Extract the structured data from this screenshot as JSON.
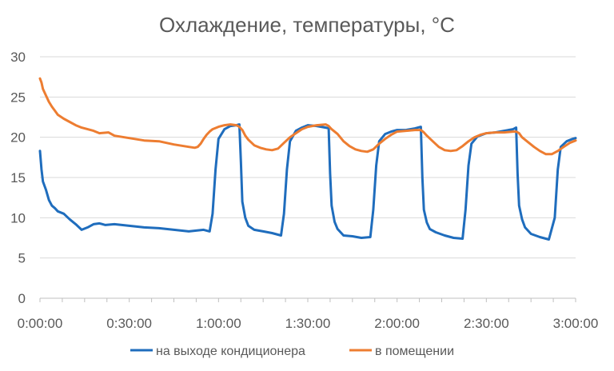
{
  "chart_data": {
    "type": "line",
    "title": "Охлаждение, температуры, °C",
    "xlabel": "",
    "ylabel": "",
    "x_unit": "minutes",
    "xlim": [
      0,
      180
    ],
    "ylim": [
      0,
      30
    ],
    "x_ticks": [
      0,
      30,
      60,
      90,
      120,
      150,
      180
    ],
    "x_tick_labels": [
      "0:00:00",
      "0:30:00",
      "1:00:00",
      "1:30:00",
      "2:00:00",
      "2:30:00",
      "3:00:00"
    ],
    "y_ticks": [
      0,
      5,
      10,
      15,
      20,
      25,
      30
    ],
    "y_tick_labels": [
      "0",
      "5",
      "10",
      "15",
      "20",
      "25",
      "30"
    ],
    "grid": true,
    "legend_position": "bottom",
    "series": [
      {
        "name": "на выходе кондиционера",
        "color": "#1f6dbd",
        "x": [
          0,
          0.5,
          1,
          2,
          3,
          4,
          5,
          6,
          8,
          10,
          12,
          14,
          16,
          18,
          20,
          22,
          25,
          30,
          35,
          40,
          45,
          50,
          55,
          57,
          58,
          59,
          60,
          62,
          64,
          66,
          67,
          67.5,
          68,
          69,
          70,
          72,
          75,
          78,
          81,
          82,
          83,
          84,
          86,
          88,
          90,
          93,
          96,
          97,
          97.5,
          98,
          99,
          100,
          102,
          105,
          108,
          111,
          112,
          113,
          114,
          116,
          118,
          120,
          123,
          126,
          128,
          128.5,
          129,
          130,
          131,
          133,
          136,
          139,
          142,
          143,
          144,
          145,
          147,
          150,
          153,
          156,
          159,
          160,
          160.5,
          161,
          162,
          163,
          165,
          168,
          171,
          173,
          174,
          175,
          177,
          179,
          180
        ],
        "y": [
          18.3,
          16,
          14.5,
          13.5,
          12.2,
          11.5,
          11.2,
          10.8,
          10.5,
          9.8,
          9.2,
          8.5,
          8.8,
          9.2,
          9.3,
          9.1,
          9.2,
          9.0,
          8.8,
          8.7,
          8.5,
          8.3,
          8.5,
          8.3,
          10.5,
          16.0,
          19.8,
          21.0,
          21.4,
          21.5,
          21.6,
          17.0,
          12.0,
          10.0,
          9.0,
          8.5,
          8.3,
          8.1,
          7.8,
          10.5,
          16.0,
          19.5,
          20.8,
          21.2,
          21.5,
          21.4,
          21.2,
          21.1,
          15.5,
          11.5,
          9.5,
          8.6,
          7.8,
          7.7,
          7.5,
          7.6,
          11.0,
          16.5,
          19.5,
          20.4,
          20.7,
          20.9,
          20.9,
          21.1,
          21.3,
          15.0,
          11.0,
          9.4,
          8.6,
          8.2,
          7.8,
          7.5,
          7.4,
          11.0,
          16.5,
          19.2,
          20.1,
          20.5,
          20.6,
          20.8,
          21.0,
          21.2,
          15.5,
          11.5,
          9.8,
          8.8,
          8.0,
          7.6,
          7.3,
          10.0,
          16.0,
          18.8,
          19.5,
          19.8,
          19.9
        ]
      },
      {
        "name": "в помещении",
        "color": "#ed7d31",
        "x": [
          0,
          0.5,
          1,
          2,
          3,
          4,
          5,
          6,
          8,
          10,
          12,
          14,
          16,
          18,
          20,
          23,
          25,
          30,
          35,
          40,
          45,
          50,
          52,
          53,
          54,
          55,
          56,
          57,
          58,
          60,
          62,
          64,
          66,
          67,
          68,
          69,
          70,
          72,
          74,
          76,
          78,
          80,
          82,
          84,
          86,
          88,
          90,
          93,
          96,
          97,
          98,
          100,
          102,
          104,
          106,
          108,
          110,
          112,
          114,
          116,
          118,
          120,
          123,
          126,
          128,
          129,
          130,
          132,
          134,
          136,
          138,
          140,
          142,
          144,
          146,
          148,
          150,
          153,
          156,
          159,
          160,
          161,
          162,
          164,
          166,
          168,
          170,
          172,
          174,
          176,
          178,
          180
        ],
        "y": [
          27.3,
          26.8,
          26.0,
          25.2,
          24.4,
          23.8,
          23.3,
          22.8,
          22.3,
          21.9,
          21.5,
          21.2,
          21.0,
          20.8,
          20.5,
          20.6,
          20.2,
          19.9,
          19.6,
          19.5,
          19.1,
          18.8,
          18.7,
          18.8,
          19.2,
          19.8,
          20.3,
          20.7,
          21.0,
          21.3,
          21.5,
          21.6,
          21.5,
          21.3,
          20.9,
          20.2,
          19.7,
          19.0,
          18.7,
          18.5,
          18.4,
          18.6,
          19.3,
          20.0,
          20.5,
          21.0,
          21.3,
          21.5,
          21.6,
          21.4,
          21.0,
          20.4,
          19.5,
          18.9,
          18.5,
          18.3,
          18.2,
          18.5,
          19.2,
          19.8,
          20.3,
          20.7,
          20.8,
          20.9,
          20.9,
          20.6,
          20.2,
          19.5,
          18.8,
          18.4,
          18.3,
          18.4,
          18.9,
          19.5,
          20.0,
          20.3,
          20.5,
          20.6,
          20.6,
          20.7,
          20.7,
          20.5,
          20.0,
          19.4,
          18.8,
          18.3,
          17.9,
          17.9,
          18.3,
          18.8,
          19.3,
          19.6
        ]
      }
    ]
  }
}
